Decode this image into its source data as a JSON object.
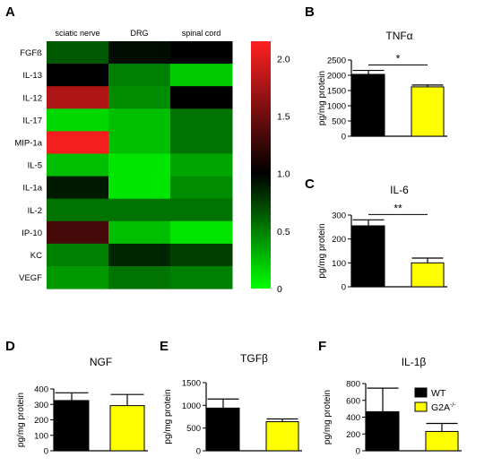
{
  "chart_data": [
    {
      "panel": "A",
      "type": "heatmap",
      "columns": [
        "sciatic nerve",
        "DRG",
        "spinal cord"
      ],
      "rows": [
        "FGFß",
        "IL-13",
        "IL-12",
        "IL-17",
        "MIP-1a",
        "IL-5",
        "IL-1a",
        "IL-2",
        "IP-10",
        "KC",
        "VEGF"
      ],
      "values": [
        [
          0.65,
          0.95,
          1.0
        ],
        [
          1.0,
          0.5,
          0.2
        ],
        [
          1.75,
          0.45,
          1.0
        ],
        [
          0.15,
          0.25,
          0.55
        ],
        [
          2.05,
          0.25,
          0.55
        ],
        [
          0.25,
          0.1,
          0.35
        ],
        [
          0.9,
          0.1,
          0.45
        ],
        [
          0.55,
          0.55,
          0.55
        ],
        [
          1.3,
          0.25,
          0.1
        ],
        [
          0.5,
          0.85,
          0.75
        ],
        [
          0.4,
          0.55,
          0.5
        ]
      ],
      "colorbar": {
        "ticks": [
          0,
          0.5,
          1.0,
          1.5,
          2.0
        ],
        "tick_labels": [
          "0",
          "0.5",
          "1.0",
          "1.5",
          "2.0"
        ],
        "min": 0,
        "max": 2.15,
        "colors": {
          "low": "#00ff00",
          "mid": "#000000",
          "high": "#ff2020"
        }
      }
    },
    {
      "panel": "B",
      "type": "bar",
      "title": "TNFα",
      "ylabel": "pg/mg protein",
      "ylim": [
        0,
        2500
      ],
      "yticks": [
        0,
        500,
        1000,
        1500,
        2000,
        2500
      ],
      "series": [
        {
          "name": "WT",
          "value": 2030,
          "error": 130
        },
        {
          "name": "G2A",
          "value": 1620,
          "error": 60
        }
      ],
      "significance": "*"
    },
    {
      "panel": "C",
      "type": "bar",
      "title": "IL-6",
      "ylabel": "pg/mg protein",
      "ylim": [
        0,
        300
      ],
      "yticks": [
        0,
        100,
        200,
        300
      ],
      "series": [
        {
          "name": "WT",
          "value": 255,
          "error": 25
        },
        {
          "name": "G2A",
          "value": 100,
          "error": 20
        }
      ],
      "significance": "**"
    },
    {
      "panel": "D",
      "type": "bar",
      "title": "NGF",
      "ylabel": "pg/mg protein",
      "ylim": [
        0,
        400
      ],
      "yticks": [
        0,
        100,
        200,
        300,
        400
      ],
      "series": [
        {
          "name": "WT",
          "value": 325,
          "error": 50
        },
        {
          "name": "G2A",
          "value": 292,
          "error": 72
        }
      ]
    },
    {
      "panel": "E",
      "type": "bar",
      "title": "TGFβ",
      "ylabel": "pg/mg protein",
      "ylim": [
        0,
        1500
      ],
      "yticks": [
        0,
        500,
        1000,
        1500
      ],
      "series": [
        {
          "name": "WT",
          "value": 940,
          "error": 200
        },
        {
          "name": "G2A",
          "value": 640,
          "error": 60
        }
      ]
    },
    {
      "panel": "F",
      "type": "bar",
      "title": "IL-1β",
      "ylabel": "pg/mg protein",
      "ylim": [
        0,
        800
      ],
      "yticks": [
        0,
        200,
        400,
        600,
        800
      ],
      "series": [
        {
          "name": "WT",
          "value": 465,
          "error": 280
        },
        {
          "name": "G2A",
          "value": 230,
          "error": 95
        }
      ]
    }
  ],
  "legend": {
    "items": [
      {
        "label": "WT",
        "sup": "",
        "color": "#000000"
      },
      {
        "label": "G2A",
        "sup": "-/-",
        "color": "#ffff00"
      }
    ]
  },
  "colors": {
    "wt": "#000000",
    "ko": "#ffff00"
  }
}
